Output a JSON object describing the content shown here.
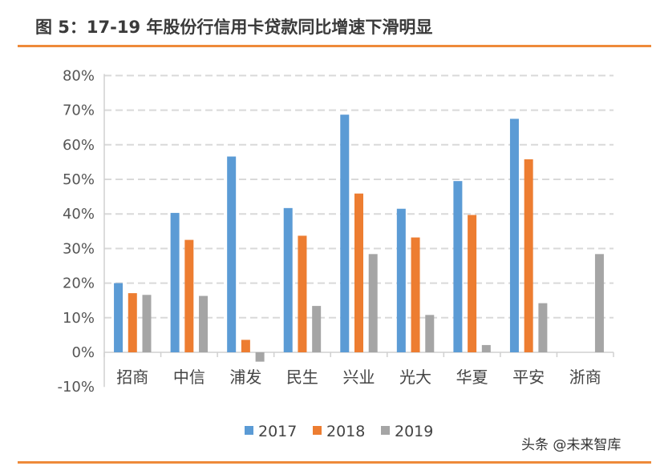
{
  "title": "图 5：17-19 年股份行信用卡贷款同比增速下滑明显",
  "watermark": "头条 @未来智库",
  "chart_data": {
    "type": "bar",
    "title": "图 5：17-19 年股份行信用卡贷款同比增速下滑明显",
    "categories": [
      "招商",
      "中信",
      "浦发",
      "民生",
      "兴业",
      "光大",
      "华夏",
      "平安",
      "浙商"
    ],
    "series": [
      {
        "name": "2017",
        "color": "#5b9bd5",
        "values": [
          20.0,
          40.3,
          56.6,
          41.7,
          68.7,
          41.5,
          49.5,
          67.5,
          null
        ]
      },
      {
        "name": "2018",
        "color": "#ed7d31",
        "values": [
          17.1,
          32.5,
          3.6,
          33.7,
          45.9,
          33.2,
          39.7,
          55.8,
          null
        ]
      },
      {
        "name": "2019",
        "color": "#a5a5a5",
        "values": [
          16.6,
          16.3,
          -2.7,
          13.4,
          28.4,
          10.8,
          2.1,
          14.2,
          28.4
        ]
      }
    ],
    "ylim": [
      -10,
      80
    ],
    "yticks": [
      "-10%",
      "0%",
      "10%",
      "20%",
      "30%",
      "40%",
      "50%",
      "60%",
      "70%",
      "80%"
    ],
    "grid": true,
    "legend": "bottom",
    "xlabel": "",
    "ylabel": ""
  }
}
